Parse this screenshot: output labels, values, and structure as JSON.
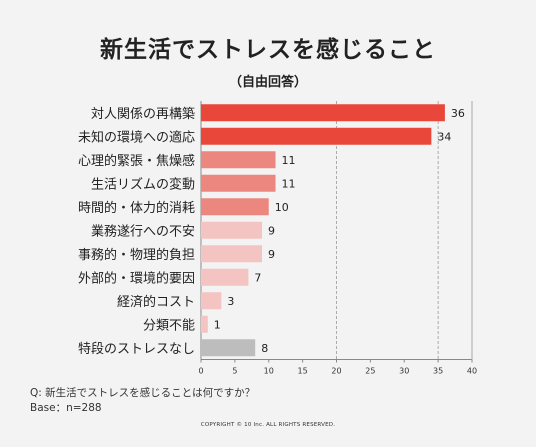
{
  "chart_data": {
    "type": "bar",
    "orientation": "horizontal",
    "title": "新生活でストレスを感じること",
    "subtitle": "（自由回答）",
    "categories": [
      "対人関係の再構築",
      "未知の環境への適応",
      "心理的緊張・焦燥感",
      "生活リズムの変動",
      "時間的・体力的消耗",
      "業務遂行への不安",
      "事務的・物理的負担",
      "外部的・環境的要因",
      "経済的コスト",
      "分類不能",
      "特段のストレスなし"
    ],
    "values": [
      36,
      34,
      11,
      11,
      10,
      9,
      9,
      7,
      3,
      1,
      8
    ],
    "bar_colors": [
      "#e8473a",
      "#e8473a",
      "#ec8780",
      "#ec8780",
      "#ec8780",
      "#f3c4c1",
      "#f3c4c1",
      "#f3c4c1",
      "#f3c4c1",
      "#f3c4c1",
      "#bdbdbd"
    ],
    "xlim": [
      0,
      40
    ],
    "xticks": [
      0,
      5,
      10,
      15,
      20,
      25,
      30,
      35,
      40
    ],
    "grid": "dashed vertical lines at 20 and 35",
    "grid_lines": [
      20,
      35
    ],
    "xlabel": "",
    "ylabel": ""
  },
  "notes": {
    "question": "Q: 新生活でストレスを感じることは何ですか？",
    "base": "Base：n=288"
  },
  "copyright": "COPYRIGHT © 10 Inc. ALL RIGHTS RESERVED."
}
